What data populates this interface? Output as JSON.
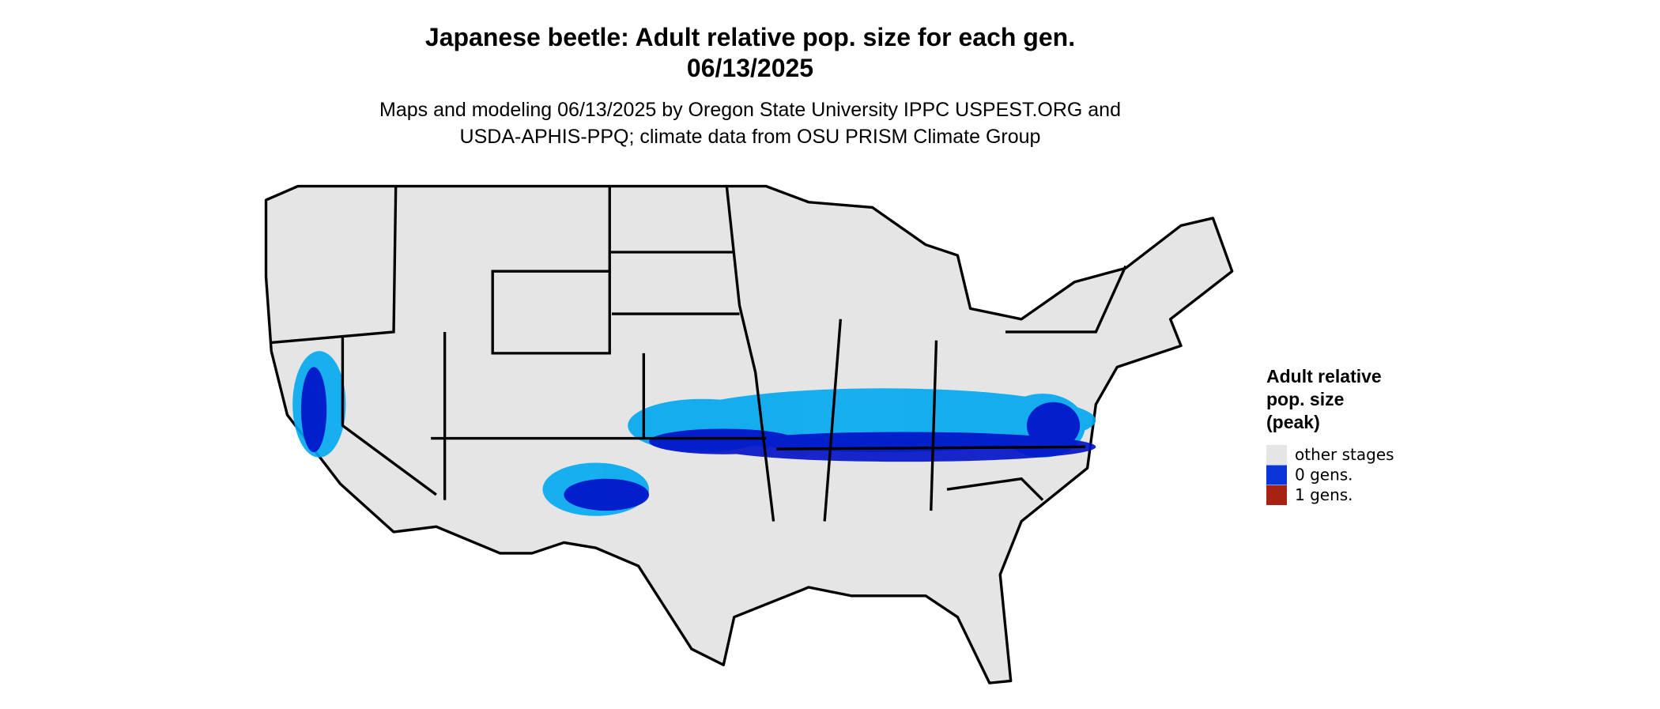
{
  "map": {
    "title": [
      "Japanese beetle: Adult relative pop. size for each gen.",
      "06/13/2025"
    ],
    "subtitle": [
      "Maps and modeling 06/13/2025 by Oregon State University IPPC USPEST.ORG and",
      "USDA-APHIS-PPQ; climate data from OSU PRISM Climate Group"
    ],
    "legend": {
      "title": [
        "Adult relative",
        "pop. size",
        "(peak)"
      ],
      "items": [
        {
          "label": "other stages",
          "color": "#e5e5e5"
        },
        {
          "label": "0 gens.",
          "color": "#0a35d9"
        },
        {
          "label": "1 gens.",
          "color": "#a62314"
        }
      ]
    }
  }
}
